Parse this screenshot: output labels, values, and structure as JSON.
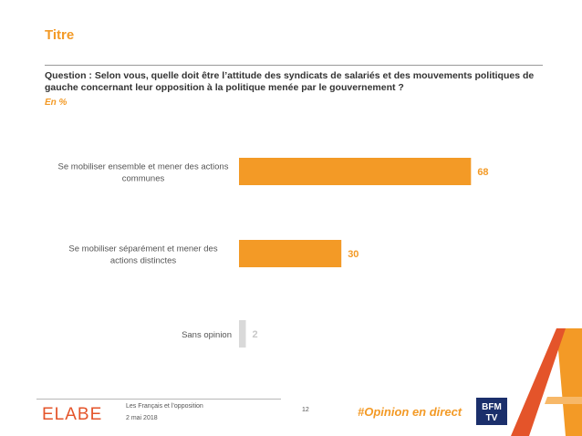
{
  "header": {
    "title": "Titre",
    "question": "Question : Selon vous, quelle doit être l’attitude des syndicats de salariés et des mouvements politiques de gauche concernant leur opposition à la politique menée par le gouvernement ?",
    "unit": "En %"
  },
  "chart_data": {
    "type": "bar",
    "orientation": "horizontal",
    "categories": [
      "Se mobiliser ensemble et mener des actions communes",
      "Se mobiliser séparément et mener des actions distinctes",
      "Sans opinion"
    ],
    "values": [
      68,
      30,
      2
    ],
    "xlim": [
      0,
      100
    ],
    "grid": false,
    "colors": [
      "#f39a26",
      "#f39a26",
      "#d9d9d9"
    ],
    "label_colors": [
      "#f39a26",
      "#f39a26",
      "#c8c8c8"
    ]
  },
  "footer": {
    "brand": "ELABE",
    "study": "Les Français et l’opposition",
    "date": "2 mai 2018",
    "page": "12",
    "hashtag": "#Opinion en direct",
    "partner_logo": "BFM TV"
  }
}
